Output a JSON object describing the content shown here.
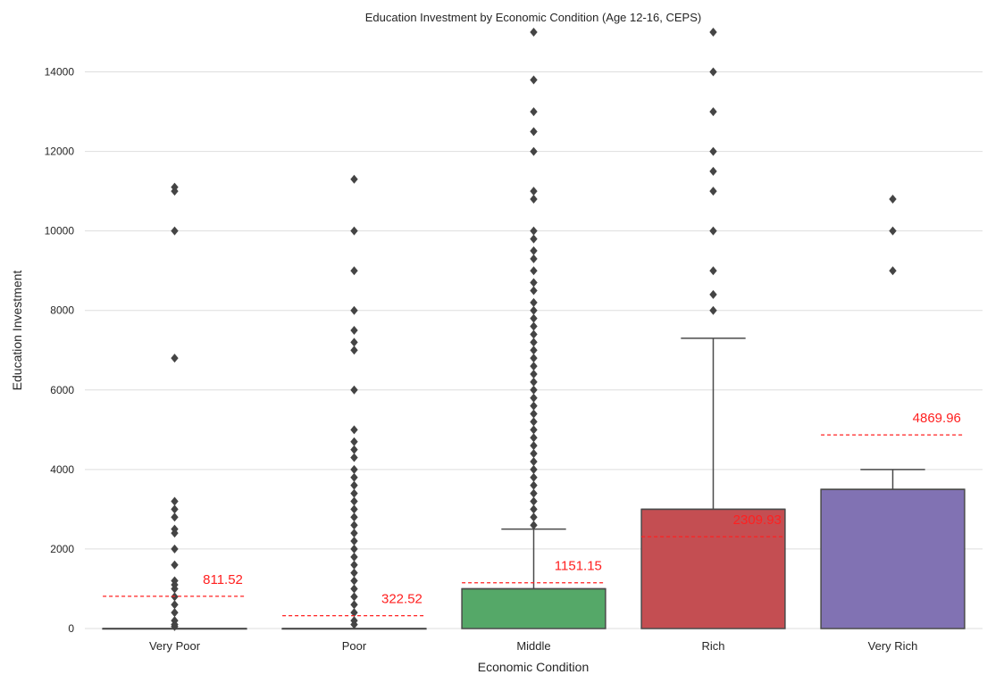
{
  "chart_data": {
    "type": "box",
    "title": "Education Investment by Economic Condition (Age 12-16, CEPS)",
    "xlabel": "Economic Condition",
    "ylabel": "Education Investment",
    "ylim": [
      0,
      15000
    ],
    "yticks": [
      0,
      2000,
      4000,
      6000,
      8000,
      10000,
      12000,
      14000
    ],
    "grid": true,
    "categories": [
      "Very Poor",
      "Poor",
      "Middle",
      "Rich",
      "Very Rich"
    ],
    "boxes": [
      {
        "category": "Very Poor",
        "q1": 0,
        "median": 0,
        "q3": 0,
        "whisker_low": 0,
        "whisker_high": 0,
        "color": "#4c72b0",
        "outliers": [
          11100,
          11000,
          10000,
          6800,
          3200,
          3000,
          2800,
          2500,
          2400,
          2000,
          1600,
          1200,
          1100,
          1000,
          800,
          600,
          400,
          200,
          100,
          50
        ]
      },
      {
        "category": "Poor",
        "q1": 0,
        "median": 0,
        "q3": 0,
        "whisker_low": 0,
        "whisker_high": 0,
        "color": "#dd8452",
        "outliers": [
          11300,
          10000,
          9000,
          8000,
          7500,
          7200,
          7000,
          6000,
          5000,
          4700,
          4500,
          4300,
          4000,
          3800,
          3600,
          3400,
          3200,
          3000,
          2800,
          2600,
          2400,
          2200,
          2000,
          1800,
          1600,
          1400,
          1200,
          1000,
          800,
          600,
          400,
          200,
          100
        ]
      },
      {
        "category": "Middle",
        "q1": 0,
        "median": 1000,
        "q3": 1000,
        "whisker_low": 0,
        "whisker_high": 2500,
        "color": "#55a868",
        "outliers": [
          15000,
          13800,
          13000,
          12500,
          12000,
          11000,
          10800,
          10000,
          9800,
          9500,
          9300,
          9000,
          8700,
          8500,
          8200,
          8000,
          7800,
          7600,
          7400,
          7200,
          7000,
          6800,
          6600,
          6400,
          6200,
          6000,
          5800,
          5600,
          5400,
          5200,
          5000,
          4800,
          4600,
          4400,
          4200,
          4000,
          3800,
          3600,
          3400,
          3200,
          3000,
          2800,
          2600
        ]
      },
      {
        "category": "Rich",
        "q1": 0,
        "median": 3000,
        "q3": 3000,
        "whisker_low": 0,
        "whisker_high": 7300,
        "color": "#c44e52",
        "outliers": [
          15000,
          14000,
          13000,
          12000,
          11500,
          11000,
          10000,
          9000,
          8400,
          8000
        ]
      },
      {
        "category": "Very Rich",
        "q1": 0,
        "median": 3500,
        "q3": 3500,
        "whisker_low": 0,
        "whisker_high": 4000,
        "color": "#8172b3",
        "outliers": [
          10800,
          10000,
          9000
        ]
      }
    ],
    "mean_lines": [
      {
        "category": "Very Poor",
        "value": 811.52,
        "label": "811.52"
      },
      {
        "category": "Poor",
        "value": 322.52,
        "label": "322.52"
      },
      {
        "category": "Middle",
        "value": 1151.15,
        "label": "1151.15"
      },
      {
        "category": "Rich",
        "value": 2309.93,
        "label": "2309.93"
      },
      {
        "category": "Very Rich",
        "value": 4869.96,
        "label": "4869.96"
      }
    ],
    "colors": {
      "grid": "#dedede",
      "axis_text": "#262626",
      "box_edge": "#4a4a4a",
      "outlier": "#444444",
      "mean_line": "#ff2020"
    }
  }
}
